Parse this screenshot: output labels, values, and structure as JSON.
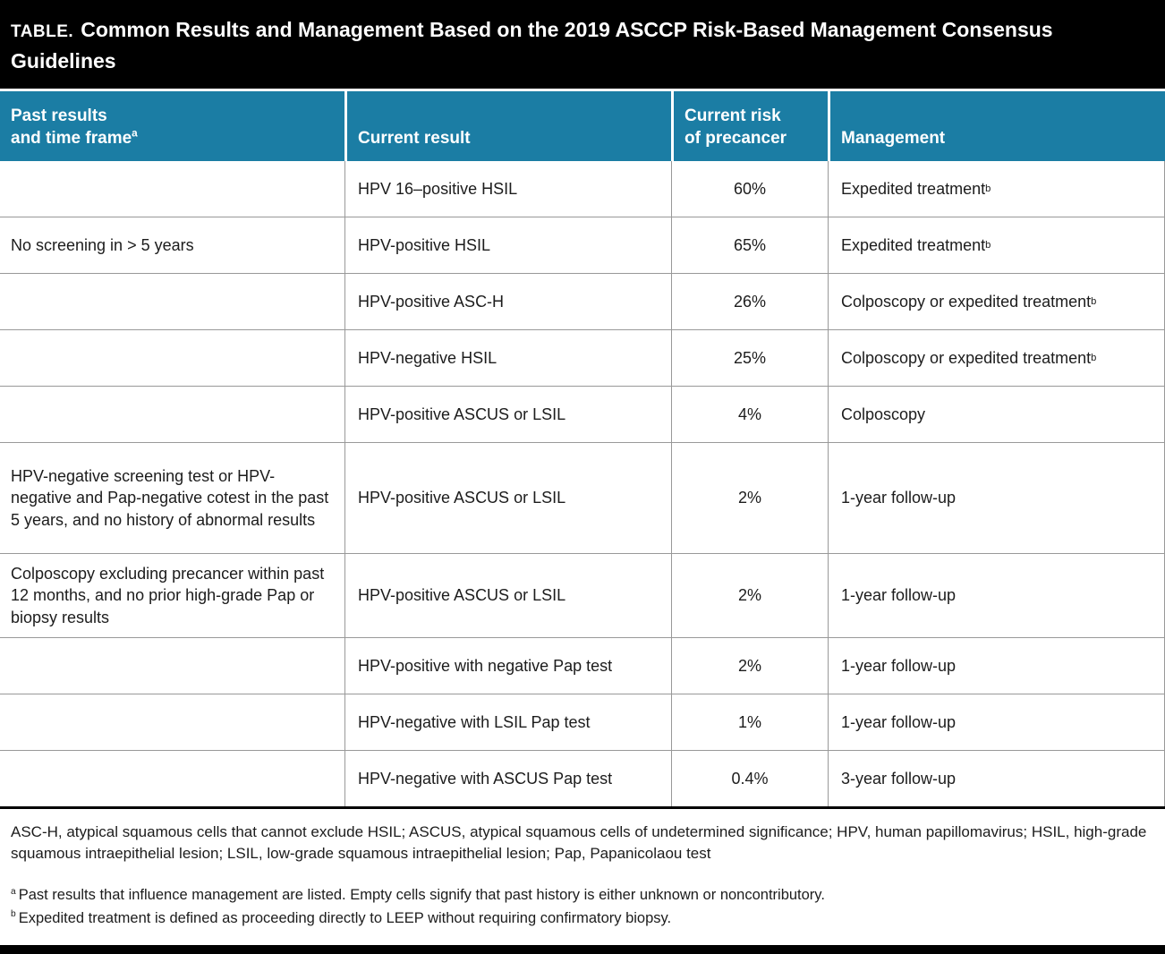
{
  "title": {
    "label": "TABLE.",
    "text": "Common Results and Management Based on the 2019 ASCCP Risk-Based Management Consensus Guidelines"
  },
  "columns": {
    "past_line1": "Past results",
    "past_line2": "and time frame",
    "past_sup": "a",
    "result": "Current result",
    "risk_line1": "Current risk",
    "risk_line2": "of precancer",
    "management": "Management"
  },
  "rows": [
    {
      "past": "",
      "result": "HPV 16–positive HSIL",
      "risk": "60%",
      "management": "Expedited treatment",
      "management_sup": "b"
    },
    {
      "past": "No screening in > 5 years",
      "result": "HPV-positive HSIL",
      "risk": "65%",
      "management": "Expedited treatment",
      "management_sup": "b"
    },
    {
      "past": "",
      "result": "HPV-positive ASC-H",
      "risk": "26%",
      "management": "Colposcopy or expedited treatment",
      "management_sup": "b"
    },
    {
      "past": "",
      "result": "HPV-negative HSIL",
      "risk": "25%",
      "management": "Colposcopy or expedited treatment",
      "management_sup": "b"
    },
    {
      "past": "",
      "result": "HPV-positive ASCUS or LSIL",
      "risk": "4%",
      "management": "Colposcopy",
      "management_sup": ""
    },
    {
      "past": "HPV-negative screening test or HPV-negative and Pap-negative cotest in the past 5 years, and no history of abnormal results",
      "result": "HPV-positive ASCUS or LSIL",
      "risk": "2%",
      "management": "1-year follow-up",
      "management_sup": ""
    },
    {
      "past": "Colposcopy excluding precancer within past 12 months, and no prior high-grade Pap or biopsy results",
      "result": "HPV-positive ASCUS or LSIL",
      "risk": "2%",
      "management": "1-year follow-up",
      "management_sup": ""
    },
    {
      "past": "",
      "result": "HPV-positive with negative Pap test",
      "risk": "2%",
      "management": "1-year follow-up",
      "management_sup": ""
    },
    {
      "past": "",
      "result": "HPV-negative with LSIL Pap test",
      "risk": "1%",
      "management": "1-year follow-up",
      "management_sup": ""
    },
    {
      "past": "",
      "result": "HPV-negative with ASCUS Pap test",
      "risk": "0.4%",
      "management": "3-year follow-up",
      "management_sup": ""
    }
  ],
  "notes": {
    "abbreviations": "ASC-H, atypical squamous cells that cannot exclude HSIL; ASCUS, atypical squamous cells of undetermined significance; HPV, human papillomavirus; HSIL, high-grade squamous intraepithelial lesion; LSIL, low-grade squamous intraepithelial lesion; Pap, Papanicolaou test",
    "footnote_a_marker": "a",
    "footnote_a": "Past results that influence management are listed. Empty cells signify that past history is either unknown or noncontributory.",
    "footnote_b_marker": "b",
    "footnote_b": "Expedited treatment is defined as proceeding directly to LEEP without requiring confirmatory biopsy."
  },
  "colors": {
    "title_bar_bg": "#000000",
    "header_bg": "#1b7da4",
    "border": "#999999"
  }
}
